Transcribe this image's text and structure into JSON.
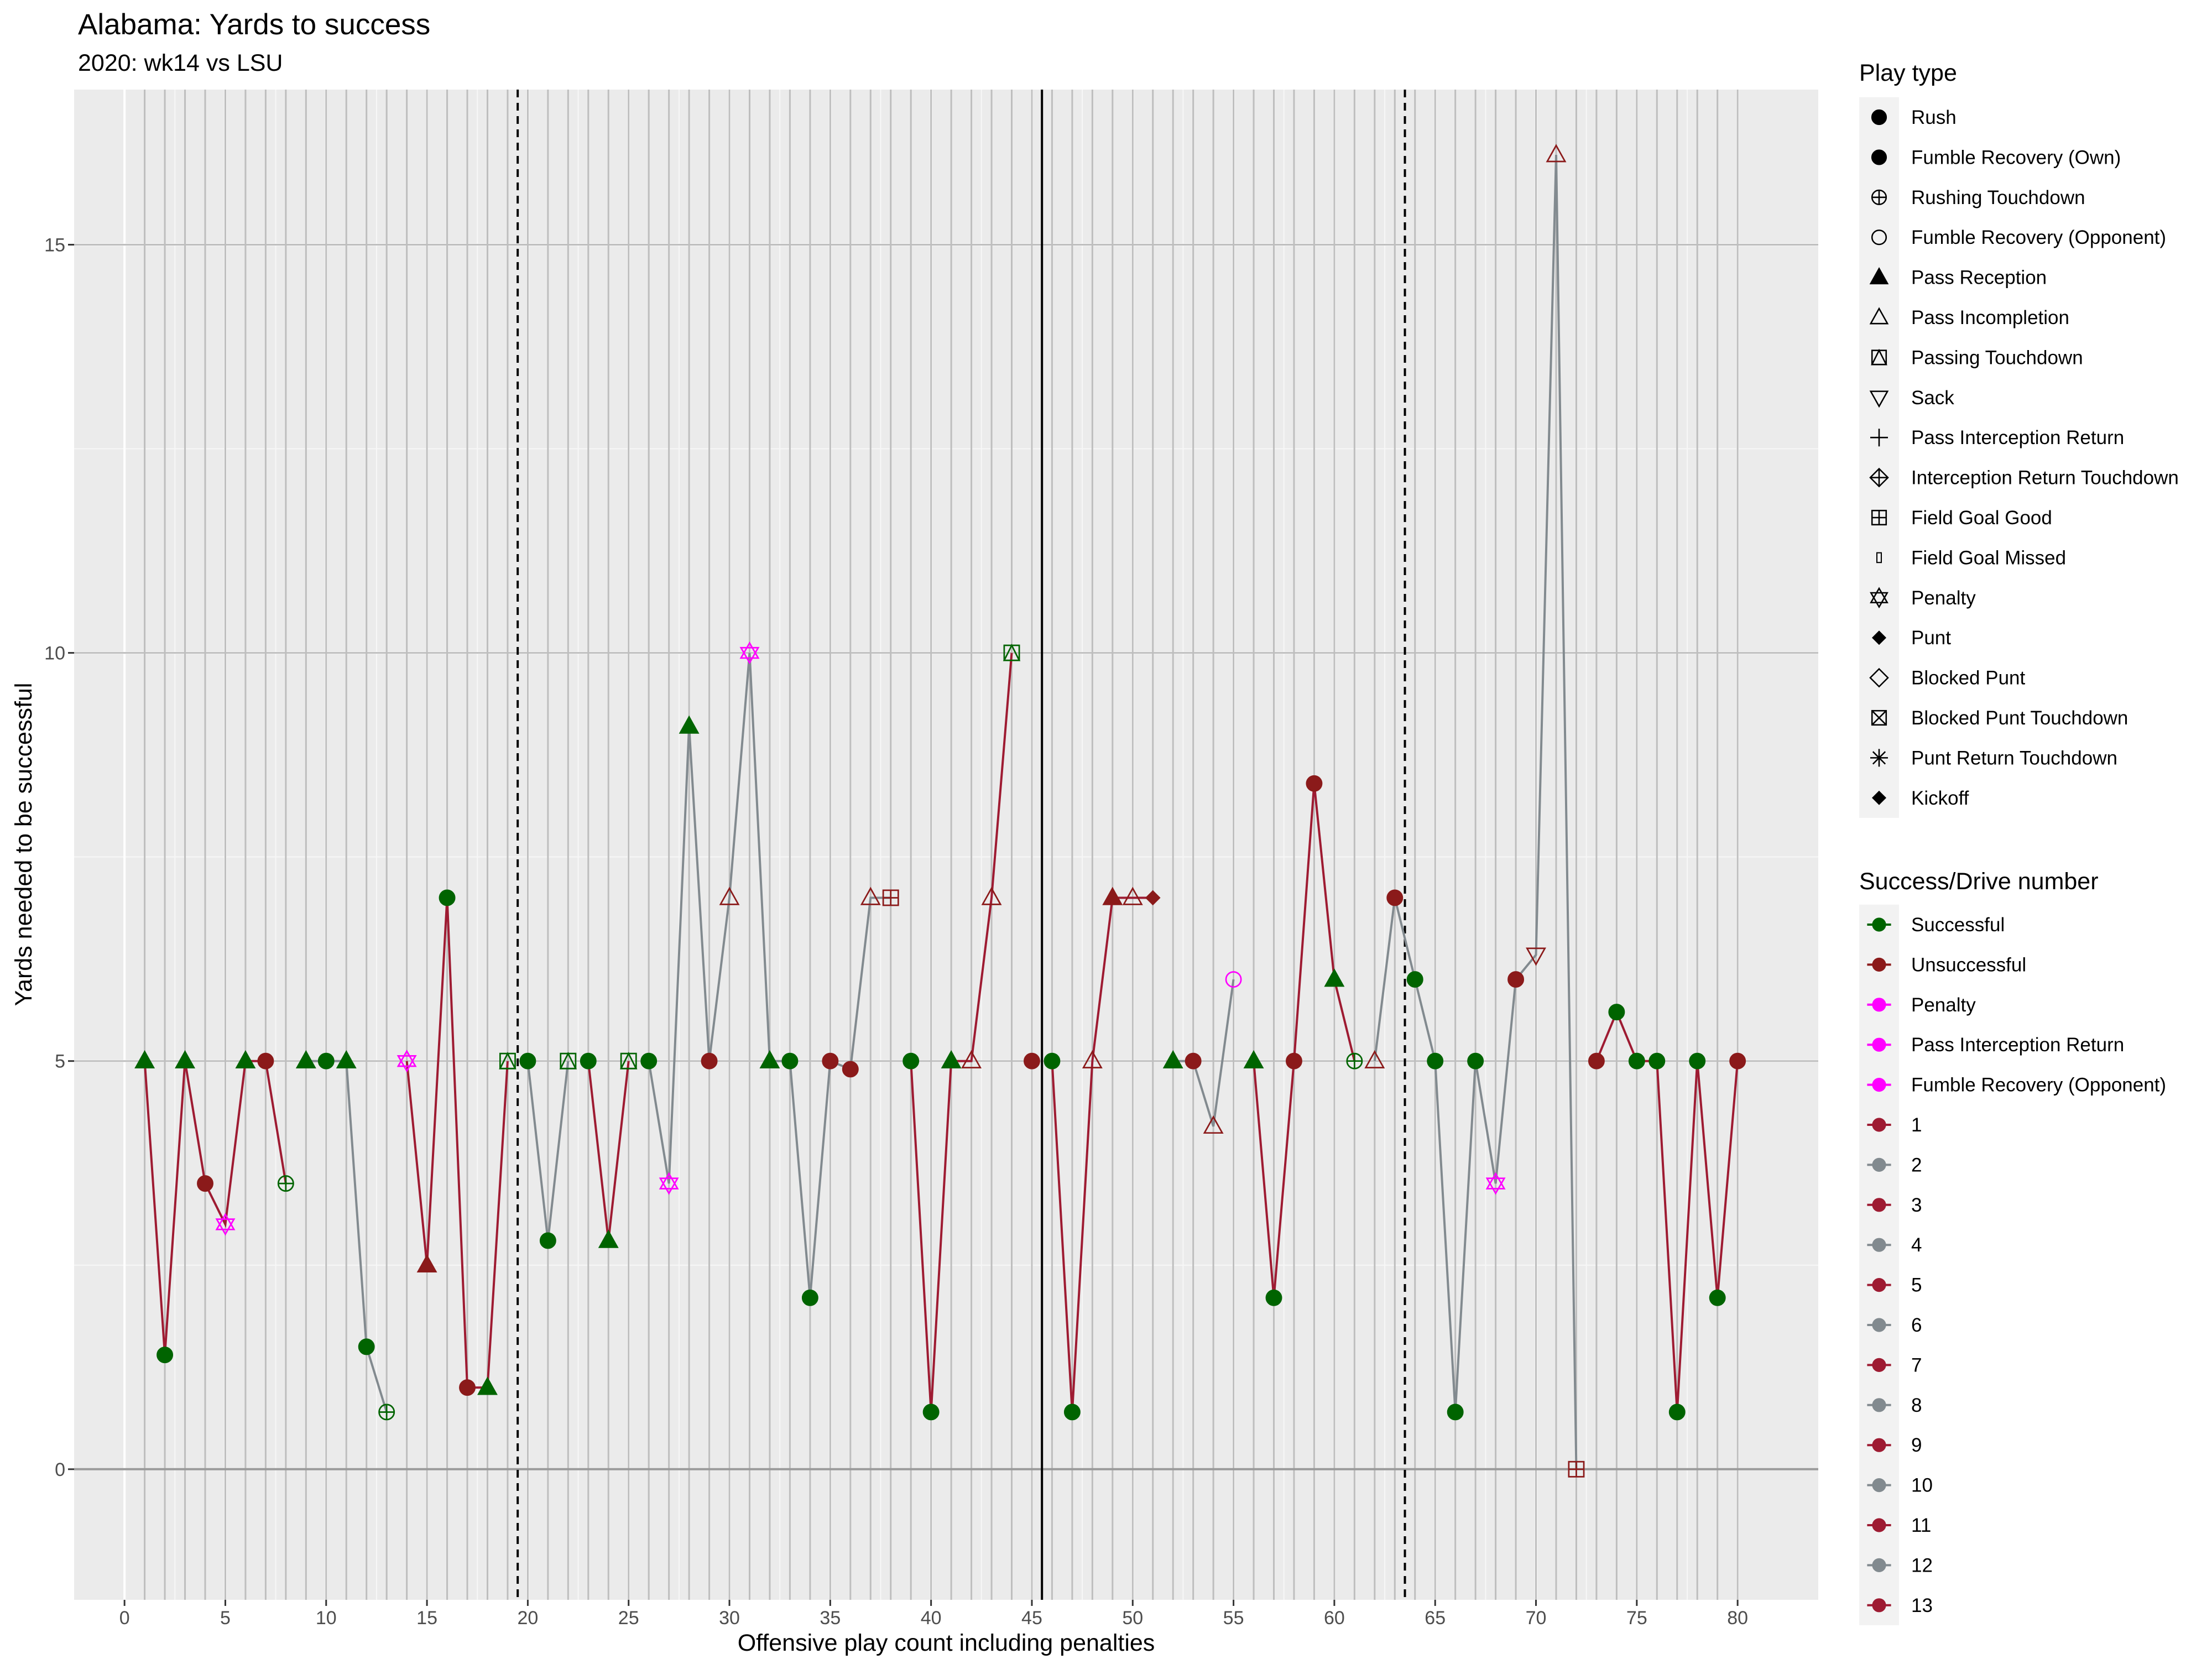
{
  "chart_data": {
    "type": "scatter",
    "title": "Alabama: Yards to success",
    "subtitle": "2020: wk14 vs LSU",
    "xlabel": "Offensive play count including penalties",
    "ylabel": "Yards needed to be successful",
    "xlim": [
      -2.5,
      84
    ],
    "ylim": [
      -1.6,
      16.9
    ],
    "x_ticks": [
      0,
      5,
      10,
      15,
      20,
      25,
      30,
      35,
      40,
      45,
      50,
      55,
      60,
      65,
      70,
      75,
      80
    ],
    "y_ticks": [
      0,
      5,
      10,
      15
    ],
    "grid": true,
    "quarter_lines": [
      {
        "x": 19.5,
        "style": "dashed"
      },
      {
        "x": 45.5,
        "style": "solid"
      },
      {
        "x": 63.5,
        "style": "dashed"
      }
    ],
    "legend_play_type": {
      "title": "Play type",
      "items": [
        {
          "label": "Rush",
          "shape": "circle-filled"
        },
        {
          "label": "Fumble Recovery (Own)",
          "shape": "circle-filled"
        },
        {
          "label": "Rushing Touchdown",
          "shape": "circle-plus"
        },
        {
          "label": "Fumble Recovery (Opponent)",
          "shape": "circle-open"
        },
        {
          "label": "Pass Reception",
          "shape": "triangle-filled"
        },
        {
          "label": "Pass Incompletion",
          "shape": "triangle-open"
        },
        {
          "label": "Passing Touchdown",
          "shape": "square-triangle"
        },
        {
          "label": "Sack",
          "shape": "triangle-down-open"
        },
        {
          "label": "Pass Interception Return",
          "shape": "plus"
        },
        {
          "label": "Interception Return Touchdown",
          "shape": "diamond-plus"
        },
        {
          "label": "Field Goal Good",
          "shape": "square-plus"
        },
        {
          "label": "Field Goal Missed",
          "shape": "small-rect"
        },
        {
          "label": "Penalty",
          "shape": "star-of-david"
        },
        {
          "label": "Punt",
          "shape": "diamond-filled"
        },
        {
          "label": "Blocked Punt",
          "shape": "diamond-open"
        },
        {
          "label": "Blocked Punt Touchdown",
          "shape": "square-x"
        },
        {
          "label": "Punt Return Touchdown",
          "shape": "asterisk"
        },
        {
          "label": "Kickoff",
          "shape": "diamond-filled"
        }
      ]
    },
    "legend_success": {
      "title": "Success/Drive number",
      "items": [
        {
          "label": "Successful",
          "color": "#006400"
        },
        {
          "label": "Unsuccessful",
          "color": "#8B1A1A"
        },
        {
          "label": "Penalty",
          "color": "#FF00FF"
        },
        {
          "label": "Pass Interception Return",
          "color": "#FF00FF"
        },
        {
          "label": "Fumble Recovery (Opponent)",
          "color": "#FF00FF"
        },
        {
          "label": "1",
          "color": "#9E1B32"
        },
        {
          "label": "2",
          "color": "#828A8F"
        },
        {
          "label": "3",
          "color": "#9E1B32"
        },
        {
          "label": "4",
          "color": "#828A8F"
        },
        {
          "label": "5",
          "color": "#9E1B32"
        },
        {
          "label": "6",
          "color": "#828A8F"
        },
        {
          "label": "7",
          "color": "#9E1B32"
        },
        {
          "label": "8",
          "color": "#828A8F"
        },
        {
          "label": "9",
          "color": "#9E1B32"
        },
        {
          "label": "10",
          "color": "#828A8F"
        },
        {
          "label": "11",
          "color": "#9E1B32"
        },
        {
          "label": "12",
          "color": "#828A8F"
        },
        {
          "label": "13",
          "color": "#9E1B32"
        }
      ]
    },
    "drives": [
      {
        "drive": 1,
        "color": "#9E1B32",
        "points": [
          {
            "x": 1,
            "y": 5,
            "shape": "triangle-filled",
            "result": "Successful"
          },
          {
            "x": 2,
            "y": 1.4,
            "shape": "circle-filled",
            "result": "Successful"
          },
          {
            "x": 3,
            "y": 5,
            "shape": "triangle-filled",
            "result": "Successful"
          },
          {
            "x": 4,
            "y": 3.5,
            "shape": "circle-filled",
            "result": "Unsuccessful"
          },
          {
            "x": 5,
            "y": 3,
            "shape": "star-of-david",
            "result": "Penalty"
          },
          {
            "x": 6,
            "y": 5,
            "shape": "triangle-filled",
            "result": "Successful"
          },
          {
            "x": 7,
            "y": 5,
            "shape": "circle-filled",
            "result": "Unsuccessful"
          },
          {
            "x": 8,
            "y": 3.5,
            "shape": "circle-plus",
            "result": "Successful"
          }
        ]
      },
      {
        "drive": 2,
        "color": "#828A8F",
        "points": [
          {
            "x": 9,
            "y": 5,
            "shape": "triangle-filled",
            "result": "Successful"
          },
          {
            "x": 10,
            "y": 5,
            "shape": "circle-filled",
            "result": "Successful"
          },
          {
            "x": 11,
            "y": 5,
            "shape": "triangle-filled",
            "result": "Successful"
          },
          {
            "x": 12,
            "y": 1.5,
            "shape": "circle-filled",
            "result": "Successful"
          },
          {
            "x": 13,
            "y": 0.7,
            "shape": "circle-plus",
            "result": "Successful"
          }
        ]
      },
      {
        "drive": 3,
        "color": "#9E1B32",
        "points": [
          {
            "x": 14,
            "y": 5,
            "shape": "star-of-david",
            "result": "Penalty"
          },
          {
            "x": 15,
            "y": 2.5,
            "shape": "triangle-filled",
            "result": "Unsuccessful"
          },
          {
            "x": 16,
            "y": 7,
            "shape": "circle-filled",
            "result": "Successful"
          },
          {
            "x": 17,
            "y": 1,
            "shape": "circle-filled",
            "result": "Unsuccessful"
          },
          {
            "x": 18,
            "y": 1,
            "shape": "triangle-filled",
            "result": "Successful"
          },
          {
            "x": 19,
            "y": 5,
            "shape": "square-triangle",
            "result": "Successful"
          }
        ]
      },
      {
        "drive": 4,
        "color": "#828A8F",
        "points": [
          {
            "x": 20,
            "y": 5,
            "shape": "circle-filled",
            "result": "Successful"
          },
          {
            "x": 21,
            "y": 2.8,
            "shape": "circle-filled",
            "result": "Successful"
          },
          {
            "x": 22,
            "y": 5,
            "shape": "square-triangle",
            "result": "Successful"
          }
        ]
      },
      {
        "drive": 5,
        "color": "#9E1B32",
        "points": [
          {
            "x": 23,
            "y": 5,
            "shape": "circle-filled",
            "result": "Successful"
          },
          {
            "x": 24,
            "y": 2.8,
            "shape": "triangle-filled",
            "result": "Successful"
          },
          {
            "x": 25,
            "y": 5,
            "shape": "square-triangle",
            "result": "Successful"
          }
        ]
      },
      {
        "drive": 6,
        "color": "#828A8F",
        "points": [
          {
            "x": 26,
            "y": 5,
            "shape": "circle-filled",
            "result": "Successful"
          },
          {
            "x": 27,
            "y": 3.5,
            "shape": "star-of-david",
            "result": "Penalty"
          },
          {
            "x": 28,
            "y": 9.1,
            "shape": "triangle-filled",
            "result": "Successful"
          },
          {
            "x": 29,
            "y": 5,
            "shape": "circle-filled",
            "result": "Unsuccessful"
          },
          {
            "x": 30,
            "y": 7,
            "shape": "triangle-open",
            "result": "Unsuccessful"
          },
          {
            "x": 31,
            "y": 10,
            "shape": "star-of-david",
            "result": "Penalty"
          },
          {
            "x": 32,
            "y": 5,
            "shape": "triangle-filled",
            "result": "Successful"
          },
          {
            "x": 33,
            "y": 5,
            "shape": "circle-filled",
            "result": "Successful"
          },
          {
            "x": 34,
            "y": 2.1,
            "shape": "circle-filled",
            "result": "Successful"
          },
          {
            "x": 35,
            "y": 5,
            "shape": "circle-filled",
            "result": "Unsuccessful"
          },
          {
            "x": 36,
            "y": 4.9,
            "shape": "circle-filled",
            "result": "Unsuccessful"
          },
          {
            "x": 37,
            "y": 7,
            "shape": "triangle-open",
            "result": "Unsuccessful"
          },
          {
            "x": 38,
            "y": 7,
            "shape": "square-plus",
            "result": "Unsuccessful"
          }
        ]
      },
      {
        "drive": 7,
        "color": "#9E1B32",
        "points": [
          {
            "x": 39,
            "y": 5,
            "shape": "circle-filled",
            "result": "Successful"
          },
          {
            "x": 40,
            "y": 0.7,
            "shape": "circle-filled",
            "result": "Successful"
          },
          {
            "x": 41,
            "y": 5,
            "shape": "triangle-filled",
            "result": "Successful"
          },
          {
            "x": 42,
            "y": 5,
            "shape": "triangle-open",
            "result": "Unsuccessful"
          },
          {
            "x": 43,
            "y": 7,
            "shape": "triangle-open",
            "result": "Unsuccessful"
          },
          {
            "x": 44,
            "y": 10,
            "shape": "square-triangle",
            "result": "Successful"
          }
        ]
      },
      {
        "drive": 8,
        "color": "#828A8F",
        "points": [
          {
            "x": 45,
            "y": 5,
            "shape": "circle-filled",
            "result": "Unsuccessful"
          }
        ]
      },
      {
        "drive": 9,
        "color": "#9E1B32",
        "points": [
          {
            "x": 46,
            "y": 5,
            "shape": "circle-filled",
            "result": "Successful"
          },
          {
            "x": 47,
            "y": 0.7,
            "shape": "circle-filled",
            "result": "Successful"
          },
          {
            "x": 48,
            "y": 5,
            "shape": "triangle-open",
            "result": "Unsuccessful"
          },
          {
            "x": 49,
            "y": 7,
            "shape": "triangle-filled",
            "result": "Unsuccessful"
          },
          {
            "x": 50,
            "y": 7,
            "shape": "triangle-open",
            "result": "Unsuccessful"
          },
          {
            "x": 51,
            "y": 7,
            "shape": "diamond-filled",
            "result": "Unsuccessful"
          }
        ]
      },
      {
        "drive": 10,
        "color": "#828A8F",
        "points": [
          {
            "x": 52,
            "y": 5,
            "shape": "triangle-filled",
            "result": "Successful"
          },
          {
            "x": 53,
            "y": 5,
            "shape": "circle-filled",
            "result": "Unsuccessful"
          },
          {
            "x": 54,
            "y": 4.2,
            "shape": "triangle-open",
            "result": "Unsuccessful"
          },
          {
            "x": 55,
            "y": 6,
            "shape": "circle-open",
            "result": "Fumble Recovery (Opponent)"
          }
        ]
      },
      {
        "drive": 11,
        "color": "#9E1B32",
        "points": [
          {
            "x": 56,
            "y": 5,
            "shape": "triangle-filled",
            "result": "Successful"
          },
          {
            "x": 57,
            "y": 2.1,
            "shape": "circle-filled",
            "result": "Successful"
          },
          {
            "x": 58,
            "y": 5,
            "shape": "circle-filled",
            "result": "Unsuccessful"
          },
          {
            "x": 59,
            "y": 8.4,
            "shape": "circle-filled",
            "result": "Unsuccessful"
          },
          {
            "x": 60,
            "y": 6,
            "shape": "triangle-filled",
            "result": "Successful"
          },
          {
            "x": 61,
            "y": 5,
            "shape": "circle-plus",
            "result": "Successful"
          }
        ]
      },
      {
        "drive": 12,
        "color": "#828A8F",
        "points": [
          {
            "x": 62,
            "y": 5,
            "shape": "triangle-open",
            "result": "Unsuccessful"
          },
          {
            "x": 63,
            "y": 7,
            "shape": "circle-filled",
            "result": "Unsuccessful"
          },
          {
            "x": 64,
            "y": 6,
            "shape": "circle-filled",
            "result": "Successful"
          },
          {
            "x": 65,
            "y": 5,
            "shape": "circle-filled",
            "result": "Successful"
          },
          {
            "x": 66,
            "y": 0.7,
            "shape": "circle-filled",
            "result": "Successful"
          },
          {
            "x": 67,
            "y": 5,
            "shape": "circle-filled",
            "result": "Successful"
          },
          {
            "x": 68,
            "y": 3.5,
            "shape": "star-of-david",
            "result": "Penalty"
          },
          {
            "x": 69,
            "y": 6,
            "shape": "circle-filled",
            "result": "Unsuccessful"
          },
          {
            "x": 70,
            "y": 6.3,
            "shape": "triangle-down-open",
            "result": "Unsuccessful"
          },
          {
            "x": 71,
            "y": 16.1,
            "shape": "triangle-open",
            "result": "Unsuccessful"
          },
          {
            "x": 72,
            "y": 0,
            "shape": "square-plus",
            "result": "Unsuccessful"
          }
        ]
      },
      {
        "drive": 13,
        "color": "#9E1B32",
        "points": [
          {
            "x": 73,
            "y": 5,
            "shape": "circle-filled",
            "result": "Unsuccessful"
          },
          {
            "x": 74,
            "y": 5.6,
            "shape": "circle-filled",
            "result": "Successful"
          },
          {
            "x": 75,
            "y": 5,
            "shape": "circle-filled",
            "result": "Successful"
          },
          {
            "x": 76,
            "y": 5,
            "shape": "circle-filled",
            "result": "Successful"
          },
          {
            "x": 77,
            "y": 0.7,
            "shape": "circle-filled",
            "result": "Successful"
          },
          {
            "x": 78,
            "y": 5,
            "shape": "circle-filled",
            "result": "Successful"
          },
          {
            "x": 79,
            "y": 2.1,
            "shape": "circle-filled",
            "result": "Successful"
          },
          {
            "x": 80,
            "y": 5,
            "shape": "circle-filled",
            "result": "Unsuccessful"
          }
        ]
      }
    ]
  }
}
